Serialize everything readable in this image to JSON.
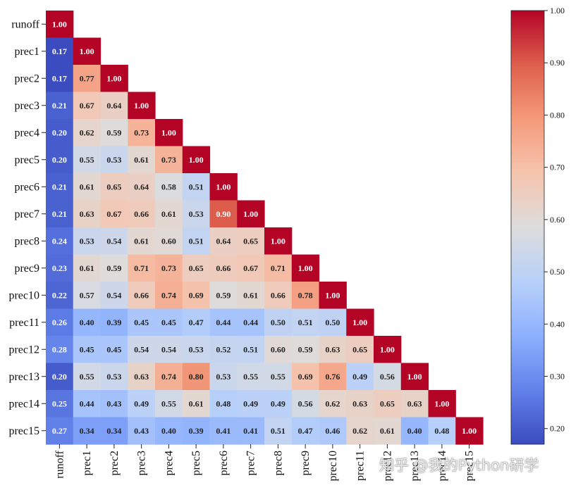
{
  "chart_data": {
    "type": "heatmap",
    "title": "",
    "variables": [
      "runoff",
      "prec1",
      "prec2",
      "prec3",
      "prec4",
      "prec5",
      "prec6",
      "prec7",
      "prec8",
      "prec9",
      "prec10",
      "prec11",
      "prec12",
      "prec13",
      "prec14",
      "prec15"
    ],
    "matrix": [
      [
        1.0
      ],
      [
        0.17,
        1.0
      ],
      [
        0.17,
        0.77,
        1.0
      ],
      [
        0.21,
        0.67,
        0.64,
        1.0
      ],
      [
        0.2,
        0.62,
        0.59,
        0.73,
        1.0
      ],
      [
        0.2,
        0.55,
        0.53,
        0.61,
        0.73,
        1.0
      ],
      [
        0.21,
        0.61,
        0.65,
        0.64,
        0.58,
        0.51,
        1.0
      ],
      [
        0.21,
        0.63,
        0.67,
        0.66,
        0.61,
        0.53,
        0.9,
        1.0
      ],
      [
        0.24,
        0.53,
        0.54,
        0.61,
        0.6,
        0.51,
        0.64,
        0.65,
        1.0
      ],
      [
        0.23,
        0.61,
        0.59,
        0.71,
        0.73,
        0.65,
        0.66,
        0.67,
        0.71,
        1.0
      ],
      [
        0.22,
        0.57,
        0.54,
        0.66,
        0.74,
        0.69,
        0.59,
        0.61,
        0.66,
        0.78,
        1.0
      ],
      [
        0.26,
        0.4,
        0.39,
        0.45,
        0.45,
        0.47,
        0.44,
        0.44,
        0.5,
        0.51,
        0.5,
        1.0
      ],
      [
        0.28,
        0.45,
        0.45,
        0.54,
        0.54,
        0.53,
        0.52,
        0.51,
        0.6,
        0.59,
        0.63,
        0.65,
        1.0
      ],
      [
        0.2,
        0.55,
        0.53,
        0.63,
        0.74,
        0.8,
        0.53,
        0.55,
        0.55,
        0.69,
        0.76,
        0.49,
        0.56,
        1.0
      ],
      [
        0.25,
        0.44,
        0.43,
        0.49,
        0.55,
        0.61,
        0.48,
        0.49,
        0.49,
        0.56,
        0.62,
        0.63,
        0.65,
        0.63,
        1.0
      ],
      [
        0.27,
        0.34,
        0.34,
        0.43,
        0.4,
        0.39,
        0.41,
        0.41,
        0.51,
        0.47,
        0.46,
        0.62,
        0.61,
        0.4,
        0.48,
        1.0
      ]
    ],
    "colormap": "coolwarm",
    "value_range": [
      0.17,
      1.0
    ],
    "colorbar_ticks": [
      "0.20",
      "0.30",
      "0.40",
      "0.50",
      "0.60",
      "0.70",
      "0.80",
      "0.90",
      "1.00"
    ]
  },
  "watermark": "知乎 @我的Python研学"
}
